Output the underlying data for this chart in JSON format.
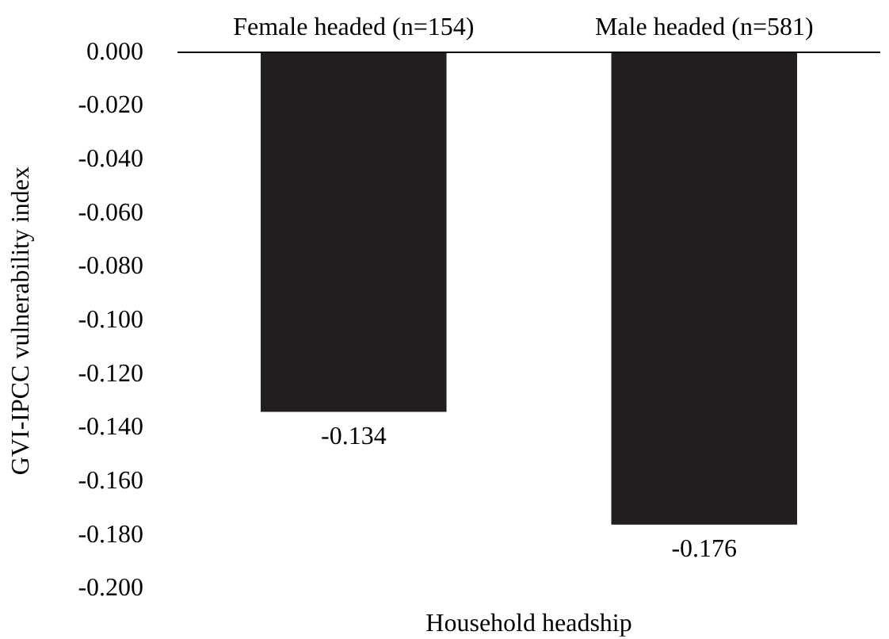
{
  "chart_data": {
    "type": "bar",
    "xlabel": "Household headship",
    "ylabel": "GVI-IPCC vulnerability index",
    "categories": [
      "Female headed (n=154)",
      "Male headed (n=581)"
    ],
    "values": [
      -0.134,
      -0.176
    ],
    "color": "#231f20",
    "ylim": [
      -0.2,
      0
    ],
    "yticks": [
      {
        "value": 0,
        "label": "0.000"
      },
      {
        "value": -0.02,
        "label": "-0.020"
      },
      {
        "value": -0.04,
        "label": "-0.040"
      },
      {
        "value": -0.06,
        "label": "-0.060"
      },
      {
        "value": -0.08,
        "label": "-0.080"
      },
      {
        "value": -0.1,
        "label": "-0.100"
      },
      {
        "value": -0.12,
        "label": "-0.120"
      },
      {
        "value": -0.14,
        "label": "-0.140"
      },
      {
        "value": -0.16,
        "label": "-0.160"
      },
      {
        "value": -0.18,
        "label": "-0.180"
      },
      {
        "value": -0.2,
        "label": "-0.200"
      }
    ],
    "data_labels": true,
    "grid": false,
    "legend": false
  }
}
